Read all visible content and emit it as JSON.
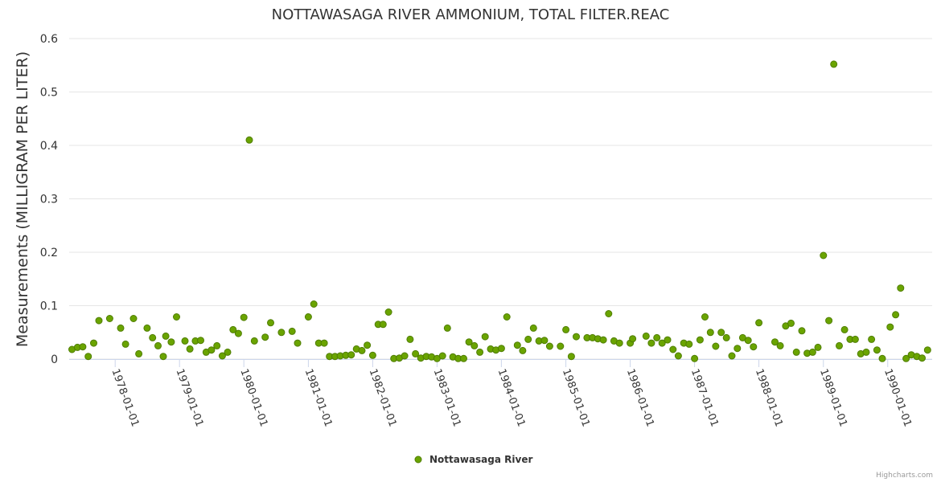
{
  "chart_data": {
    "type": "scatter",
    "title": "NOTTAWASAGA RIVER AMMONIUM, TOTAL FILTER.REAC",
    "xlabel": "",
    "ylabel": "Measurements (MILLIGRAM PER LITER)",
    "ylim": [
      0,
      0.6
    ],
    "yticks": [
      "0",
      "0.1",
      "0.2",
      "0.3",
      "0.4",
      "0.5",
      "0.6"
    ],
    "xlim": [
      "1977-04-15",
      "1990-09-10"
    ],
    "xticks": [
      "1978-01-01",
      "1979-01-01",
      "1980-01-01",
      "1981-01-01",
      "1982-01-01",
      "1983-01-01",
      "1984-01-01",
      "1985-01-01",
      "1986-01-01",
      "1987-01-01",
      "1988-01-01",
      "1989-01-01",
      "1990-01-01"
    ],
    "grid": true,
    "legend": "bottom-center",
    "series": [
      {
        "name": "Nottawasaga River",
        "color": "#6aa400",
        "points": [
          [
            "1977-05-01",
            0.018
          ],
          [
            "1977-06-01",
            0.022
          ],
          [
            "1977-07-01",
            0.023
          ],
          [
            "1977-08-01",
            0.005
          ],
          [
            "1977-09-01",
            0.03
          ],
          [
            "1977-10-01",
            0.072
          ],
          [
            "1977-12-01",
            0.076
          ],
          [
            "1978-02-01",
            0.058
          ],
          [
            "1978-03-01",
            0.028
          ],
          [
            "1978-04-15",
            0.076
          ],
          [
            "1978-05-15",
            0.01
          ],
          [
            "1978-07-01",
            0.058
          ],
          [
            "1978-08-01",
            0.04
          ],
          [
            "1978-09-01",
            0.025
          ],
          [
            "1978-10-01",
            0.005
          ],
          [
            "1978-10-15",
            0.043
          ],
          [
            "1978-11-15",
            0.032
          ],
          [
            "1978-12-15",
            0.079
          ],
          [
            "1979-02-01",
            0.034
          ],
          [
            "1979-03-01",
            0.019
          ],
          [
            "1979-04-01",
            0.034
          ],
          [
            "1979-05-01",
            0.035
          ],
          [
            "1979-06-01",
            0.013
          ],
          [
            "1979-07-01",
            0.017
          ],
          [
            "1979-08-01",
            0.025
          ],
          [
            "1979-09-01",
            0.006
          ],
          [
            "1979-10-01",
            0.013
          ],
          [
            "1979-11-01",
            0.055
          ],
          [
            "1979-12-01",
            0.048
          ],
          [
            "1980-01-01",
            0.078
          ],
          [
            "1980-02-01",
            0.41
          ],
          [
            "1980-03-01",
            0.034
          ],
          [
            "1980-05-01",
            0.041
          ],
          [
            "1980-06-01",
            0.068
          ],
          [
            "1980-08-01",
            0.05
          ],
          [
            "1980-10-01",
            0.052
          ],
          [
            "1980-11-01",
            0.03
          ],
          [
            "1981-01-01",
            0.079
          ],
          [
            "1981-02-01",
            0.103
          ],
          [
            "1981-03-01",
            0.03
          ],
          [
            "1981-04-01",
            0.03
          ],
          [
            "1981-05-01",
            0.005
          ],
          [
            "1981-06-01",
            0.005
          ],
          [
            "1981-07-01",
            0.006
          ],
          [
            "1981-08-01",
            0.007
          ],
          [
            "1981-09-01",
            0.008
          ],
          [
            "1981-10-01",
            0.019
          ],
          [
            "1981-11-01",
            0.016
          ],
          [
            "1981-12-01",
            0.026
          ],
          [
            "1982-01-01",
            0.007
          ],
          [
            "1982-02-01",
            0.065
          ],
          [
            "1982-03-01",
            0.065
          ],
          [
            "1982-04-01",
            0.088
          ],
          [
            "1982-05-01",
            0.001
          ],
          [
            "1982-06-01",
            0.002
          ],
          [
            "1982-07-01",
            0.006
          ],
          [
            "1982-08-01",
            0.037
          ],
          [
            "1982-09-01",
            0.01
          ],
          [
            "1982-10-01",
            0.002
          ],
          [
            "1982-11-01",
            0.005
          ],
          [
            "1982-12-01",
            0.004
          ],
          [
            "1983-01-01",
            0.001
          ],
          [
            "1983-02-01",
            0.006
          ],
          [
            "1983-03-01",
            0.058
          ],
          [
            "1983-04-01",
            0.004
          ],
          [
            "1983-05-01",
            0.001
          ],
          [
            "1983-06-01",
            0.001
          ],
          [
            "1983-07-01",
            0.032
          ],
          [
            "1983-08-01",
            0.025
          ],
          [
            "1983-09-01",
            0.013
          ],
          [
            "1983-10-01",
            0.042
          ],
          [
            "1983-11-01",
            0.019
          ],
          [
            "1983-12-01",
            0.017
          ],
          [
            "1984-01-01",
            0.02
          ],
          [
            "1984-02-01",
            0.079
          ],
          [
            "1984-04-01",
            0.026
          ],
          [
            "1984-05-01",
            0.016
          ],
          [
            "1984-06-01",
            0.037
          ],
          [
            "1984-07-01",
            0.058
          ],
          [
            "1984-08-01",
            0.034
          ],
          [
            "1984-09-01",
            0.035
          ],
          [
            "1984-10-01",
            0.024
          ],
          [
            "1984-12-01",
            0.024
          ],
          [
            "1985-01-01",
            0.055
          ],
          [
            "1985-02-01",
            0.005
          ],
          [
            "1985-03-01",
            0.042
          ],
          [
            "1985-05-01",
            0.04
          ],
          [
            "1985-06-01",
            0.04
          ],
          [
            "1985-07-01",
            0.038
          ],
          [
            "1985-08-01",
            0.036
          ],
          [
            "1985-09-01",
            0.085
          ],
          [
            "1985-10-01",
            0.034
          ],
          [
            "1985-11-01",
            0.03
          ],
          [
            "1986-01-01",
            0.03
          ],
          [
            "1986-01-15",
            0.038
          ],
          [
            "1986-04-01",
            0.043
          ],
          [
            "1986-05-01",
            0.03
          ],
          [
            "1986-06-01",
            0.04
          ],
          [
            "1986-07-01",
            0.03
          ],
          [
            "1986-08-01",
            0.036
          ],
          [
            "1986-09-01",
            0.018
          ],
          [
            "1986-10-01",
            0.006
          ],
          [
            "1986-11-01",
            0.03
          ],
          [
            "1986-12-01",
            0.028
          ],
          [
            "1987-01-01",
            0.001
          ],
          [
            "1987-02-01",
            0.036
          ],
          [
            "1987-03-01",
            0.079
          ],
          [
            "1987-04-01",
            0.05
          ],
          [
            "1987-05-01",
            0.024
          ],
          [
            "1987-06-01",
            0.05
          ],
          [
            "1987-07-01",
            0.04
          ],
          [
            "1987-08-01",
            0.006
          ],
          [
            "1987-09-01",
            0.02
          ],
          [
            "1987-10-01",
            0.04
          ],
          [
            "1987-11-01",
            0.035
          ],
          [
            "1987-12-01",
            0.023
          ],
          [
            "1988-01-01",
            0.068
          ],
          [
            "1988-04-01",
            0.032
          ],
          [
            "1988-05-01",
            0.025
          ],
          [
            "1988-06-01",
            0.062
          ],
          [
            "1988-07-01",
            0.067
          ],
          [
            "1988-08-01",
            0.013
          ],
          [
            "1988-09-01",
            0.053
          ],
          [
            "1988-10-01",
            0.011
          ],
          [
            "1988-11-01",
            0.013
          ],
          [
            "1988-12-01",
            0.022
          ],
          [
            "1989-01-01",
            0.194
          ],
          [
            "1989-02-01",
            0.072
          ],
          [
            "1989-03-01",
            0.552
          ],
          [
            "1989-04-01",
            0.025
          ],
          [
            "1989-05-01",
            0.055
          ],
          [
            "1989-06-01",
            0.037
          ],
          [
            "1989-07-01",
            0.037
          ],
          [
            "1989-08-01",
            0.01
          ],
          [
            "1989-09-01",
            0.013
          ],
          [
            "1989-10-01",
            0.037
          ],
          [
            "1989-11-01",
            0.017
          ],
          [
            "1989-12-01",
            0.001
          ],
          [
            "1990-01-15",
            0.06
          ],
          [
            "1990-02-15",
            0.083
          ],
          [
            "1990-03-15",
            0.133
          ],
          [
            "1990-04-15",
            0.001
          ],
          [
            "1990-05-15",
            0.008
          ],
          [
            "1990-06-15",
            0.005
          ],
          [
            "1990-07-15",
            0.002
          ],
          [
            "1990-08-15",
            0.017
          ]
        ]
      }
    ]
  },
  "credits": "Highcharts.com"
}
